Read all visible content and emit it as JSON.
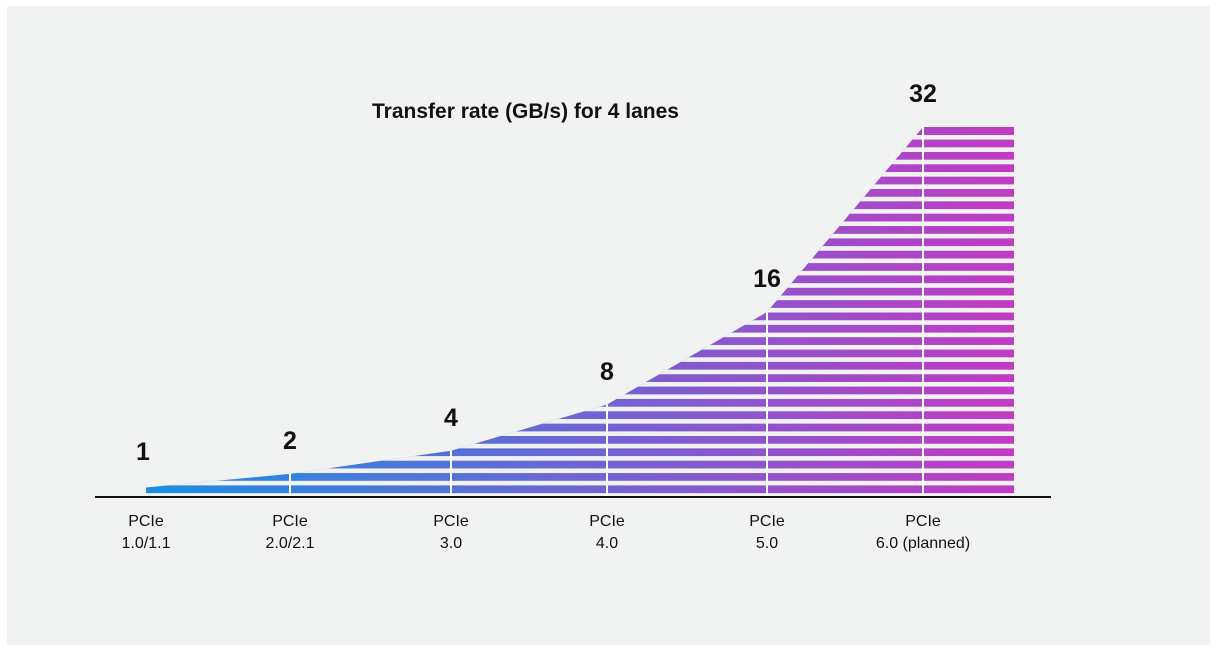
{
  "chart_data": {
    "type": "area",
    "title": "Transfer rate (GB/s) for 4 lanes",
    "categories": [
      [
        "PCIe",
        "1.0/1.1"
      ],
      [
        "PCIe",
        "2.0/2.1"
      ],
      [
        "PCIe",
        "3.0"
      ],
      [
        "PCIe",
        "4.0"
      ],
      [
        "PCIe",
        "5.0"
      ],
      [
        "PCIe",
        "6.0 (planned)"
      ]
    ],
    "values": [
      1,
      2,
      4,
      8,
      16,
      32
    ],
    "ylim": [
      0,
      32
    ],
    "grid": false,
    "legend": "none",
    "colors": {
      "start": "#1a8fe3",
      "end": "#c23bc3",
      "stripe_gap": "#f1f2f2",
      "marker": "#ffffff",
      "axis": "#111111"
    }
  }
}
